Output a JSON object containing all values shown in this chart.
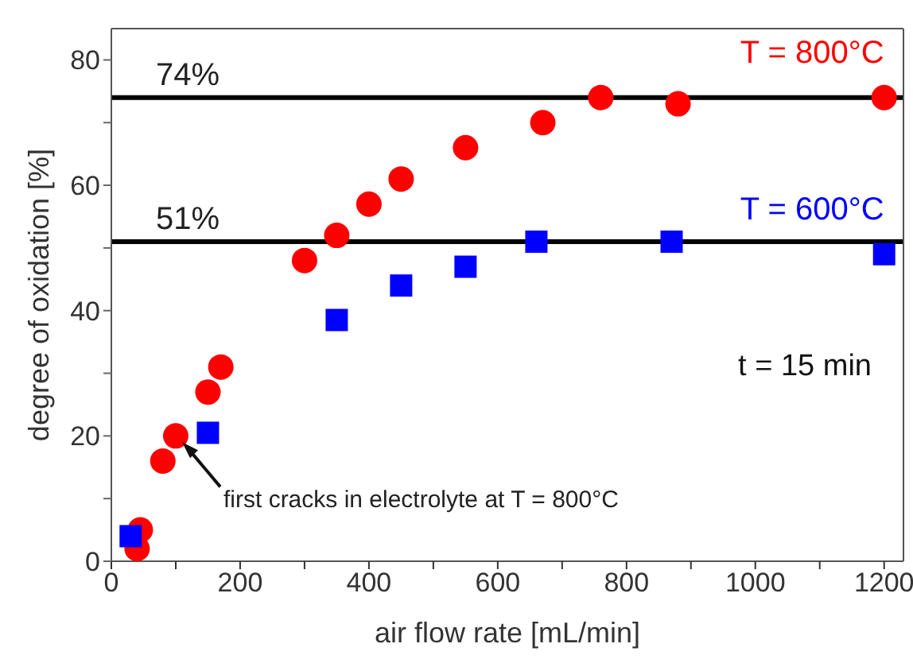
{
  "chart_data": {
    "type": "scatter",
    "xlabel": "air flow rate [mL/min]",
    "ylabel": "degree of oxidation [%]",
    "xlim": [
      0,
      1230
    ],
    "ylim": [
      0,
      85
    ],
    "xticks": [
      0,
      {
        "value": 100,
        "label": null
      },
      200,
      {
        "value": 300,
        "label": null
      },
      400,
      {
        "value": 500,
        "label": null
      },
      600,
      {
        "value": 700,
        "label": null
      },
      800,
      {
        "value": 900,
        "label": null
      },
      1000,
      {
        "value": 1100,
        "label": null
      },
      1200
    ],
    "yticks": [
      0,
      {
        "value": 10,
        "label": null
      },
      20,
      {
        "value": 30,
        "label": null
      },
      40,
      {
        "value": 50,
        "label": null
      },
      60,
      {
        "value": 70,
        "label": null
      },
      80
    ],
    "series": [
      {
        "name": "T = 800°C",
        "color": "#ff0000",
        "marker": "circle",
        "x": [
          40,
          45,
          80,
          100,
          150,
          170,
          300,
          350,
          400,
          450,
          550,
          670,
          760,
          880,
          1200
        ],
        "values": [
          2,
          5,
          16,
          20,
          27,
          31,
          48,
          52,
          57,
          61,
          66,
          70,
          74,
          73,
          74
        ]
      },
      {
        "name": "T = 600°C",
        "color": "#0000ff",
        "marker": "square",
        "x": [
          30,
          150,
          350,
          450,
          550,
          660,
          870,
          1200
        ],
        "values": [
          4,
          20.5,
          38.5,
          44,
          47,
          51,
          51,
          49
        ]
      }
    ],
    "ref_lines": [
      {
        "axis": "y",
        "value": 74,
        "label": "74%",
        "color": "#000000"
      },
      {
        "axis": "y",
        "value": 51,
        "label": "51%",
        "color": "#000000"
      }
    ],
    "annotations": [
      "t = 15 min",
      {
        "text": "first cracks in electrolyte at T = 800°C",
        "x": 100,
        "y": 20
      }
    ]
  }
}
